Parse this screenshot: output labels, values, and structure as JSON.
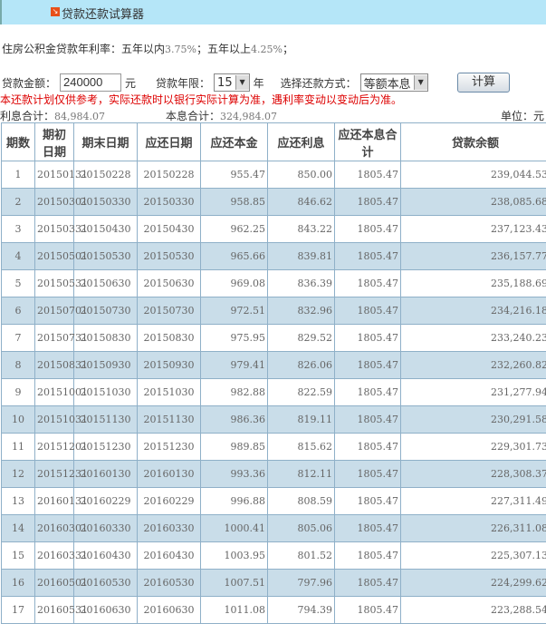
{
  "title": "贷款还款试算器",
  "rate_label": "住房公积金贷款年利率：五年以内",
  "rate_in5": "3.75%",
  "rate_mid": "；五年以上",
  "rate_over5": "4.25%",
  "rate_end": "；",
  "form": {
    "amount_label": "贷款金额：",
    "amount": "240000",
    "amount_unit": "元",
    "years_label": "贷款年限：",
    "years": "15",
    "years_unit": "年",
    "method_label": "选择还款方式：",
    "method": "等额本息",
    "calc": "计算"
  },
  "warning": "本还款计划仅供参考，实际还款时以银行实际计算为准，遇利率变动以变动后为准。",
  "summary": {
    "interest_label": "利息合计：",
    "interest": "84,984.07",
    "total_label": "本息合计：",
    "total": "324,984.07",
    "unit": "单位：元"
  },
  "columns": [
    "期数",
    "期初日期",
    "期末日期",
    "应还日期",
    "应还本金",
    "应还利息",
    "应还本息合计",
    "贷款余额"
  ],
  "rows": [
    [
      "1",
      "20150131",
      "20150228",
      "20150228",
      "955.47",
      "850.00",
      "1805.47",
      "239,044.53"
    ],
    [
      "2",
      "20150301",
      "20150330",
      "20150330",
      "958.85",
      "846.62",
      "1805.47",
      "238,085.68"
    ],
    [
      "3",
      "20150331",
      "20150430",
      "20150430",
      "962.25",
      "843.22",
      "1805.47",
      "237,123.43"
    ],
    [
      "4",
      "20150501",
      "20150530",
      "20150530",
      "965.66",
      "839.81",
      "1805.47",
      "236,157.77"
    ],
    [
      "5",
      "20150531",
      "20150630",
      "20150630",
      "969.08",
      "836.39",
      "1805.47",
      "235,188.69"
    ],
    [
      "6",
      "20150701",
      "20150730",
      "20150730",
      "972.51",
      "832.96",
      "1805.47",
      "234,216.18"
    ],
    [
      "7",
      "20150731",
      "20150830",
      "20150830",
      "975.95",
      "829.52",
      "1805.47",
      "233,240.23"
    ],
    [
      "8",
      "20150831",
      "20150930",
      "20150930",
      "979.41",
      "826.06",
      "1805.47",
      "232,260.82"
    ],
    [
      "9",
      "20151001",
      "20151030",
      "20151030",
      "982.88",
      "822.59",
      "1805.47",
      "231,277.94"
    ],
    [
      "10",
      "20151031",
      "20151130",
      "20151130",
      "986.36",
      "819.11",
      "1805.47",
      "230,291.58"
    ],
    [
      "11",
      "20151201",
      "20151230",
      "20151230",
      "989.85",
      "815.62",
      "1805.47",
      "229,301.73"
    ],
    [
      "12",
      "20151231",
      "20160130",
      "20160130",
      "993.36",
      "812.11",
      "1805.47",
      "228,308.37"
    ],
    [
      "13",
      "20160131",
      "20160229",
      "20160229",
      "996.88",
      "808.59",
      "1805.47",
      "227,311.49"
    ],
    [
      "14",
      "20160301",
      "20160330",
      "20160330",
      "1000.41",
      "805.06",
      "1805.47",
      "226,311.08"
    ],
    [
      "15",
      "20160331",
      "20160430",
      "20160430",
      "1003.95",
      "801.52",
      "1805.47",
      "225,307.13"
    ],
    [
      "16",
      "20160501",
      "20160530",
      "20160530",
      "1007.51",
      "797.96",
      "1805.47",
      "224,299.62"
    ],
    [
      "17",
      "20160531",
      "20160630",
      "20160630",
      "1011.08",
      "794.39",
      "1805.47",
      "223,288.54"
    ]
  ]
}
